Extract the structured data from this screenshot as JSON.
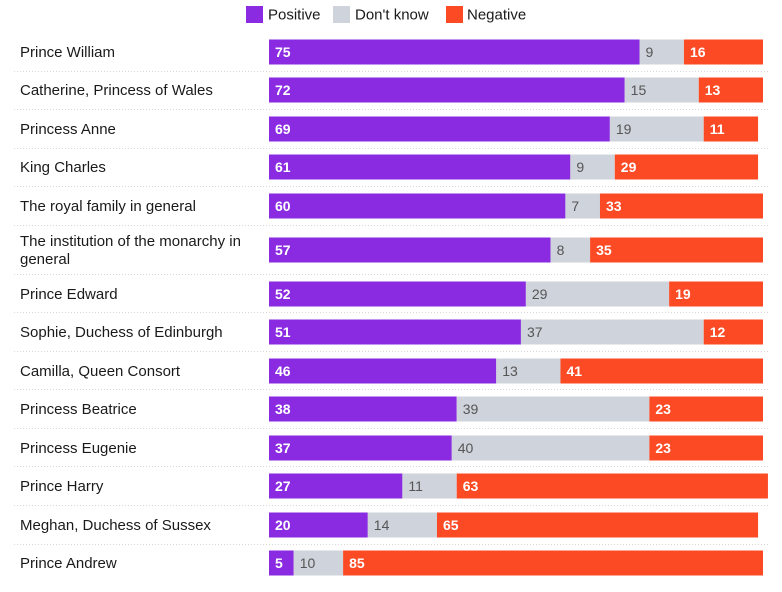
{
  "chart_data": {
    "type": "bar",
    "orientation": "horizontal",
    "stacked": true,
    "legend_position": "top-center",
    "categories": [
      [
        "Prince William"
      ],
      [
        "Catherine, Princess of Wales"
      ],
      [
        "Princess Anne"
      ],
      [
        "King Charles"
      ],
      [
        "The royal family in general"
      ],
      [
        "The institution of the monarchy in",
        "general"
      ],
      [
        "Prince Edward"
      ],
      [
        "Sophie, Duchess of Edinburgh"
      ],
      [
        "Camilla, Queen Consort"
      ],
      [
        "Princess Beatrice"
      ],
      [
        "Princess Eugenie"
      ],
      [
        "Prince Harry"
      ],
      [
        "Meghan, Duchess of Sussex"
      ],
      [
        "Prince Andrew"
      ]
    ],
    "series": [
      {
        "name": "Positive",
        "color": "#8a2be2",
        "values": [
          75,
          72,
          69,
          61,
          60,
          57,
          52,
          51,
          46,
          38,
          37,
          27,
          20,
          5
        ]
      },
      {
        "name": "Don't know",
        "color": "#cfd3db",
        "values": [
          9,
          15,
          19,
          9,
          7,
          8,
          29,
          37,
          13,
          39,
          40,
          11,
          14,
          10
        ]
      },
      {
        "name": "Negative",
        "color": "#fc4a25",
        "values": [
          16,
          13,
          11,
          29,
          33,
          35,
          19,
          12,
          41,
          23,
          23,
          63,
          65,
          85
        ]
      }
    ],
    "xlim": [
      0,
      100
    ],
    "title": "",
    "xlabel": "",
    "ylabel": ""
  }
}
